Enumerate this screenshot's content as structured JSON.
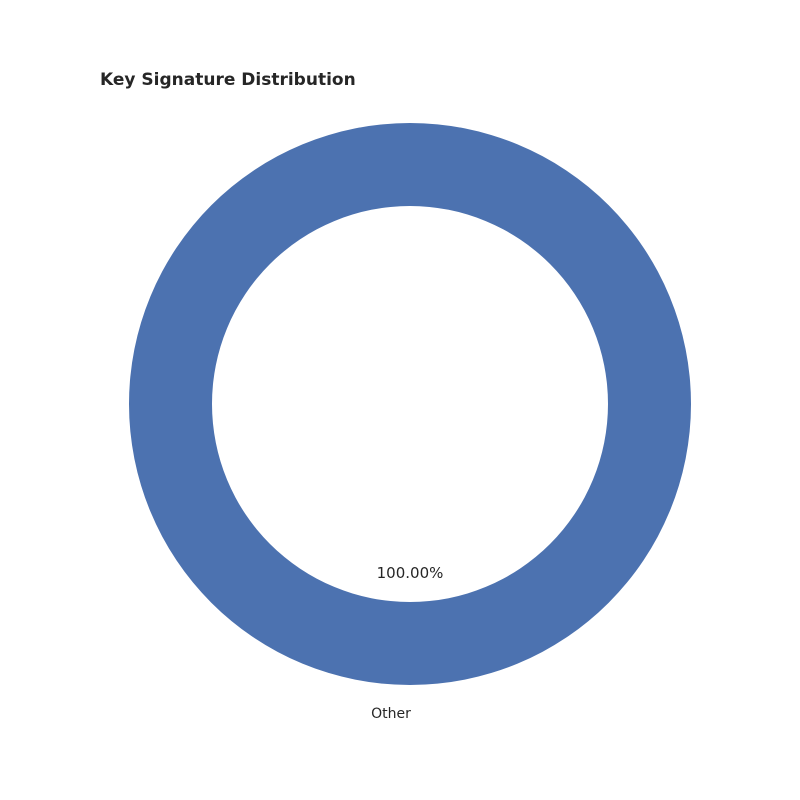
{
  "chart_data": {
    "type": "pie",
    "title": "Key Signature Distribution",
    "donut": true,
    "slices": [
      {
        "label": "Other",
        "value": 100,
        "pct_label": "100.00%",
        "color": "#4c72b0"
      }
    ]
  }
}
